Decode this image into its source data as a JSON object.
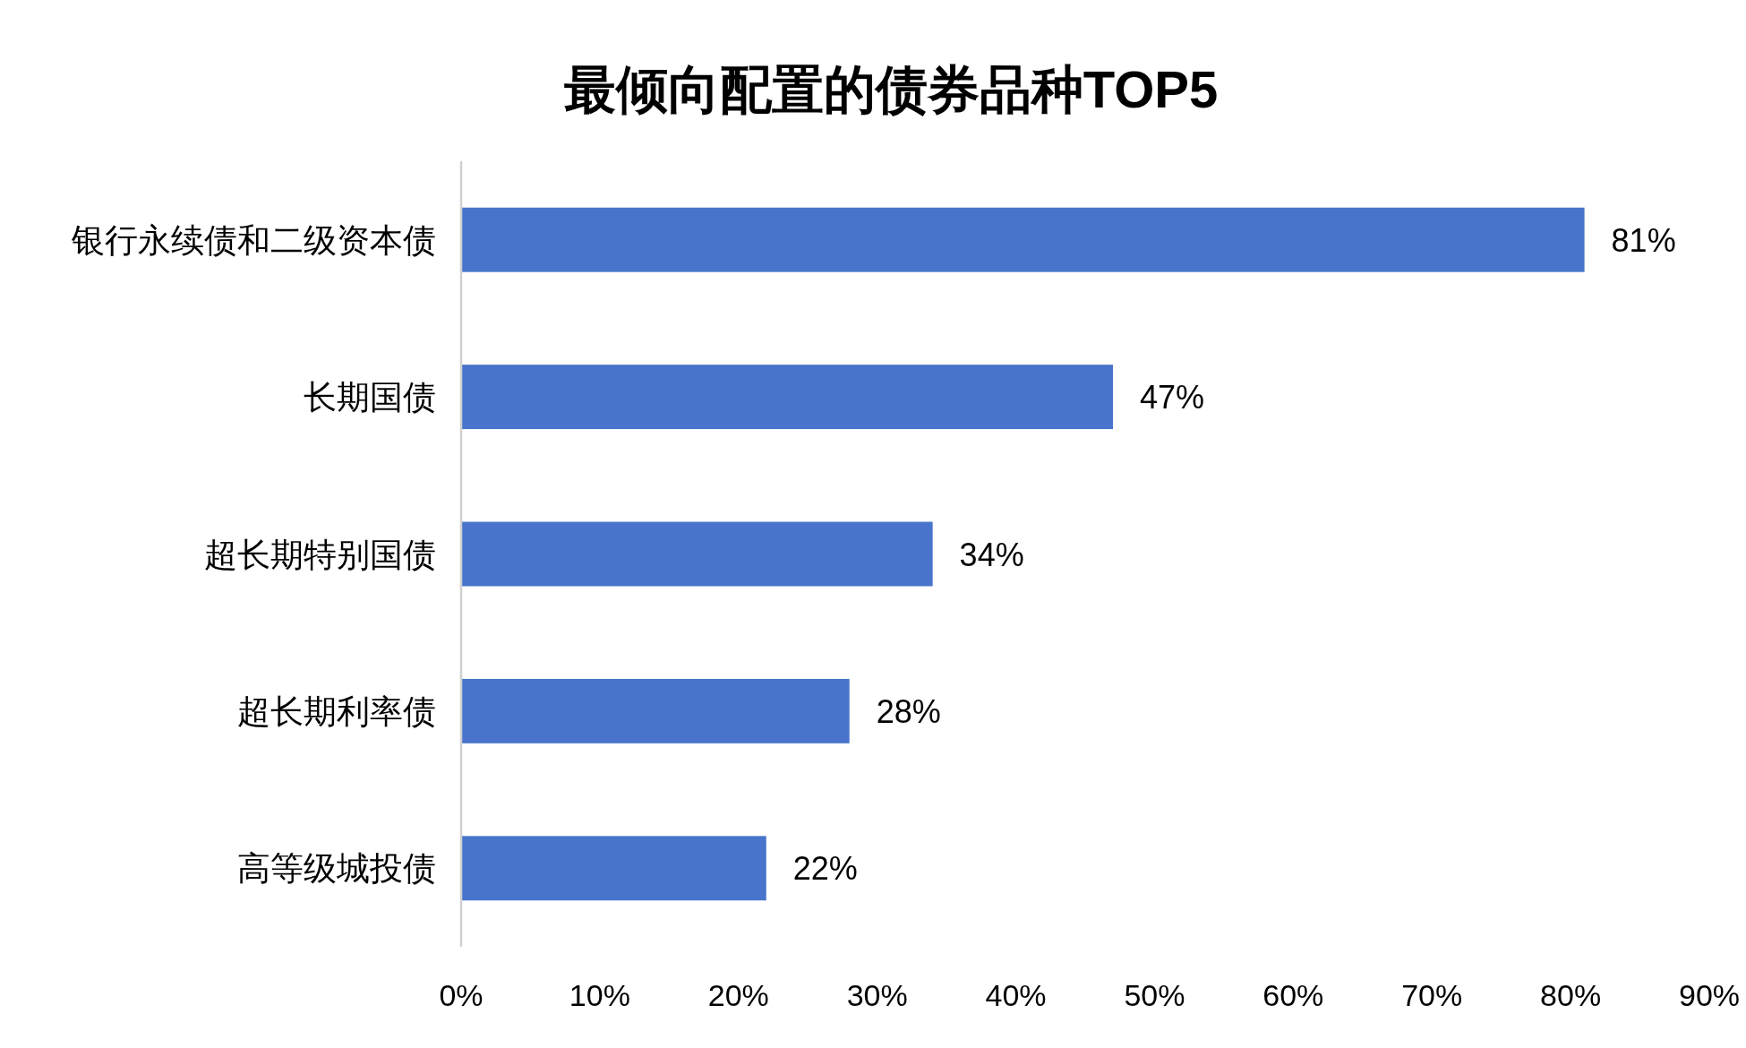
{
  "chart_data": {
    "type": "bar",
    "orientation": "horizontal",
    "title": "最倾向配置的债券品种TOP5",
    "categories": [
      "银行永续债和二级资本债",
      "长期国债",
      "超长期特别国债",
      "超长期利率债",
      "高等级城投债"
    ],
    "values": [
      81,
      47,
      34,
      28,
      22
    ],
    "value_labels": [
      "81%",
      "47%",
      "34%",
      "28%",
      "22%"
    ],
    "color": "#4874cb",
    "xlim": [
      0,
      90
    ],
    "xticks": [
      {
        "value": 0,
        "label": "0%"
      },
      {
        "value": 10,
        "label": "10%"
      },
      {
        "value": 20,
        "label": "20%"
      },
      {
        "value": 30,
        "label": "30%"
      },
      {
        "value": 40,
        "label": "40%"
      },
      {
        "value": 50,
        "label": "50%"
      },
      {
        "value": 60,
        "label": "60%"
      },
      {
        "value": 70,
        "label": "70%"
      },
      {
        "value": 80,
        "label": "80%"
      },
      {
        "value": 90,
        "label": "90%"
      }
    ]
  }
}
